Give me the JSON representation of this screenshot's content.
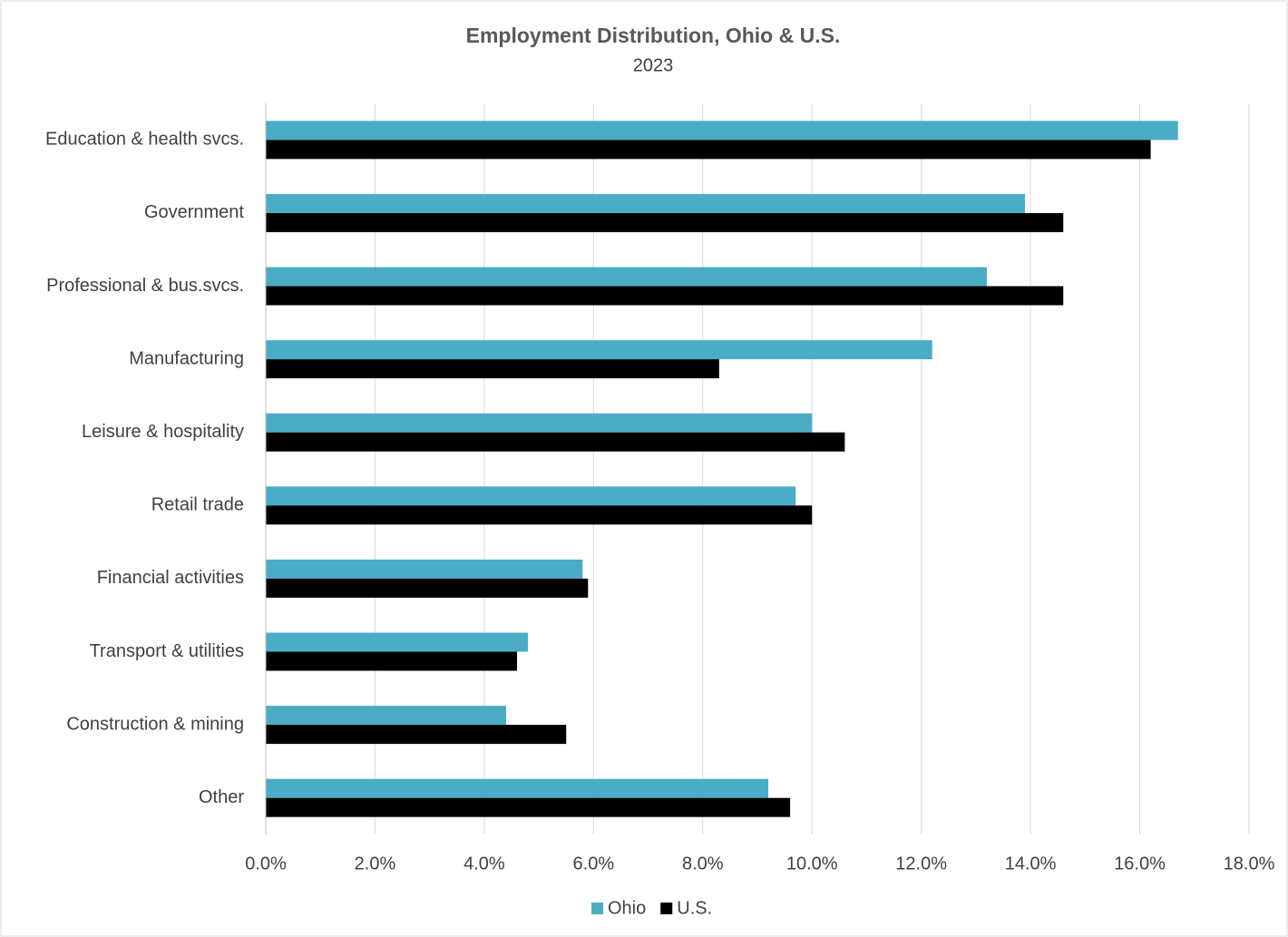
{
  "chart_data": {
    "type": "bar",
    "orientation": "horizontal",
    "title": "Employment Distribution, Ohio & U.S.",
    "subtitle": "2023",
    "categories": [
      "Education & health svcs.",
      "Government",
      "Professional & bus.svcs.",
      "Manufacturing",
      "Leisure & hospitality",
      "Retail trade",
      "Financial activities",
      "Transport & utilities",
      "Construction & mining",
      "Other"
    ],
    "series": [
      {
        "name": "Ohio",
        "color": "#4bacc6",
        "values": [
          16.7,
          13.9,
          13.2,
          12.2,
          10.0,
          9.7,
          5.8,
          4.8,
          4.4,
          9.2
        ]
      },
      {
        "name": "U.S.",
        "color": "#000000",
        "values": [
          16.2,
          14.6,
          14.6,
          8.3,
          10.6,
          10.0,
          5.9,
          4.6,
          5.5,
          9.6
        ]
      }
    ],
    "xlim": [
      0,
      18
    ],
    "xticks": [
      {
        "value": 0,
        "label": "0.0%"
      },
      {
        "value": 2,
        "label": "2.0%"
      },
      {
        "value": 4,
        "label": "4.0%"
      },
      {
        "value": 6,
        "label": "6.0%"
      },
      {
        "value": 8,
        "label": "8.0%"
      },
      {
        "value": 10,
        "label": "10.0%"
      },
      {
        "value": 12,
        "label": "12.0%"
      },
      {
        "value": 14,
        "label": "14.0%"
      },
      {
        "value": 16,
        "label": "16.0%"
      },
      {
        "value": 18,
        "label": "18.0%"
      }
    ],
    "grid": true,
    "legend": "bottom"
  }
}
